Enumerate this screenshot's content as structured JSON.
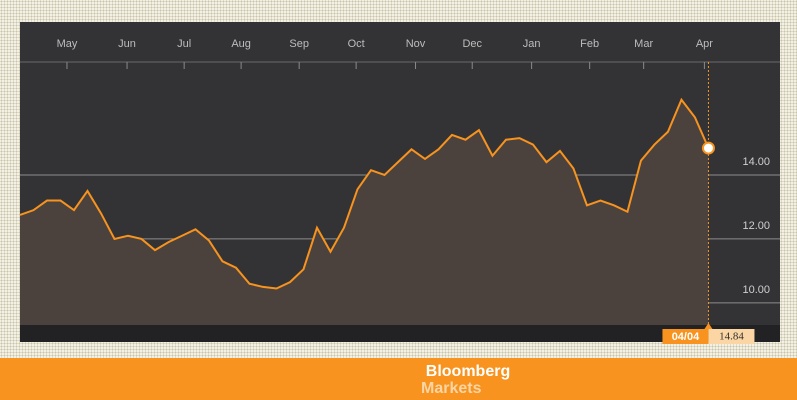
{
  "chart_data": {
    "type": "line",
    "series": [
      {
        "color": "#f7931e",
        "values": [
          12.75,
          12.9,
          13.2,
          13.2,
          12.9,
          13.5,
          12.8,
          12.0,
          12.1,
          12.0,
          11.65,
          11.9,
          12.1,
          12.3,
          11.95,
          11.3,
          11.1,
          10.6,
          10.5,
          10.45,
          10.65,
          11.05,
          12.35,
          11.6,
          12.35,
          13.55,
          14.15,
          14.0,
          14.4,
          14.8,
          14.5,
          14.8,
          15.25,
          15.1,
          15.4,
          14.6,
          15.1,
          15.15,
          14.95,
          14.4,
          14.75,
          14.2,
          13.05,
          13.2,
          13.05,
          12.85,
          14.45,
          14.95,
          15.35,
          16.35,
          15.8,
          14.84
        ]
      }
    ],
    "xlim": [
      0,
      56.3
    ],
    "xticks": [
      {
        "value": 3.48,
        "label": "May"
      },
      {
        "value": 7.93,
        "label": "Jun"
      },
      {
        "value": 12.16,
        "label": "Jul"
      },
      {
        "value": 16.38,
        "label": "Aug"
      },
      {
        "value": 20.68,
        "label": "Sep"
      },
      {
        "value": 24.9,
        "label": "Oct"
      },
      {
        "value": 29.3,
        "label": "Nov"
      },
      {
        "value": 33.5,
        "label": "Dec"
      },
      {
        "value": 37.9,
        "label": "Jan"
      },
      {
        "value": 42.2,
        "label": "Feb"
      },
      {
        "value": 46.2,
        "label": "Mar"
      },
      {
        "value": 50.7,
        "label": "Apr"
      }
    ],
    "ylim": [
      9.31,
      17.53
    ],
    "yticks": [
      {
        "value": 10,
        "label": "10.00"
      },
      {
        "value": 12,
        "label": "12.00"
      },
      {
        "value": 14,
        "label": "14.00"
      }
    ],
    "grid": true,
    "highlight": {
      "label": "04/04",
      "value": 14.84,
      "value_label": "14.84"
    }
  },
  "footer": {
    "brand": "Bloomberg",
    "sub": "Markets"
  }
}
